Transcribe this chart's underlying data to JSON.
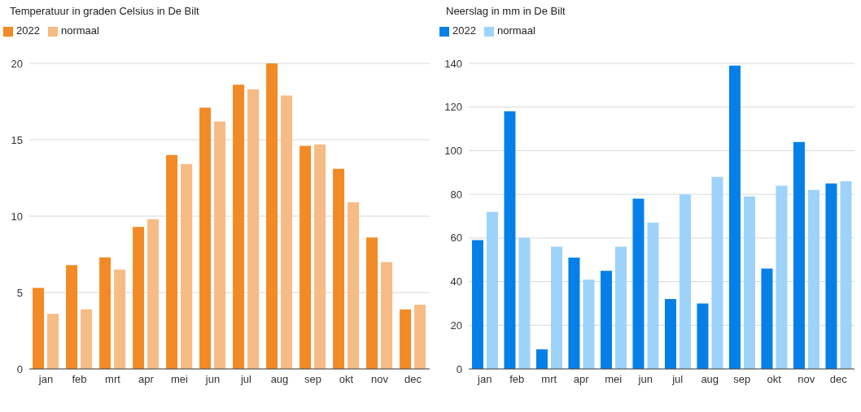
{
  "chart_data": [
    {
      "type": "bar",
      "title": "Temperatuur in graden Celsius in De Bilt",
      "categories": [
        "jan",
        "feb",
        "mrt",
        "apr",
        "mei",
        "jun",
        "jul",
        "aug",
        "sep",
        "okt",
        "nov",
        "dec"
      ],
      "series": [
        {
          "name": "2022",
          "color": "#f28a26",
          "values": [
            5.3,
            6.8,
            7.3,
            9.3,
            14.0,
            17.1,
            18.6,
            20.0,
            14.6,
            13.1,
            8.6,
            3.9
          ]
        },
        {
          "name": "normaal",
          "color": "#f7bb85",
          "values": [
            3.6,
            3.9,
            6.5,
            9.8,
            13.4,
            16.2,
            18.3,
            17.9,
            14.7,
            10.9,
            7.0,
            4.2
          ]
        }
      ],
      "ylim": [
        0,
        20
      ],
      "yticks": [
        0,
        5,
        10,
        15,
        20
      ],
      "grid": "y",
      "legend": "top left"
    },
    {
      "type": "bar",
      "title": "Neerslag in mm in De Bilt",
      "categories": [
        "jan",
        "feb",
        "mrt",
        "apr",
        "mei",
        "jun",
        "jul",
        "aug",
        "sep",
        "okt",
        "nov",
        "dec"
      ],
      "series": [
        {
          "name": "2022",
          "color": "#0580e8",
          "values": [
            59,
            118,
            9,
            51,
            45,
            78,
            32,
            30,
            139,
            46,
            104,
            85
          ]
        },
        {
          "name": "normaal",
          "color": "#9dd3fb",
          "values": [
            72,
            60,
            56,
            41,
            56,
            67,
            80,
            88,
            79,
            84,
            82,
            86
          ]
        }
      ],
      "ylim": [
        0,
        140
      ],
      "yticks": [
        0,
        20,
        40,
        60,
        80,
        100,
        120,
        140
      ],
      "grid": "y",
      "legend": "top left"
    }
  ]
}
